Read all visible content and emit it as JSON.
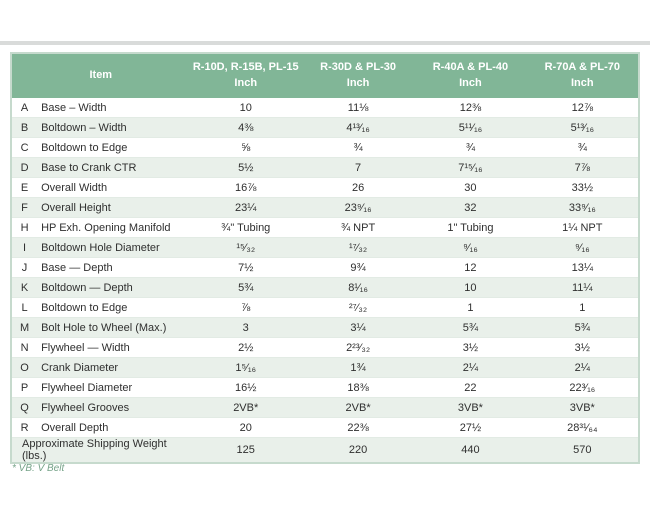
{
  "colors": {
    "header_bg": "#81b697",
    "header_text": "#ffffff",
    "row_stripe": "#e9f0ea",
    "table_border": "#c6dacd",
    "footnote_text": "#76a389",
    "top_rule": "#d9dbda"
  },
  "table": {
    "header": {
      "item_label": "Item",
      "columns": [
        {
          "line1": "R-10D, R-15B, PL-15",
          "line2": "Inch"
        },
        {
          "line1": "R-30D & PL-30",
          "line2": "Inch"
        },
        {
          "line1": "R-40A & PL-40",
          "line2": "Inch"
        },
        {
          "line1": "R-70A & PL-70",
          "line2": "Inch"
        }
      ]
    },
    "rows": [
      {
        "letter": "A",
        "item": "Base – Width",
        "values": [
          "10",
          "11⅛",
          "12⅜",
          "12⅞"
        ]
      },
      {
        "letter": "B",
        "item": "Boltdown – Width",
        "values": [
          "4⅜",
          "4¹³⁄₁₆",
          "5¹¹⁄₁₆",
          "5¹³⁄₁₆"
        ]
      },
      {
        "letter": "C",
        "item": "Boltdown to Edge",
        "values": [
          "⅝",
          "¾",
          "¾",
          "¾"
        ]
      },
      {
        "letter": "D",
        "item": "Base to Crank CTR",
        "values": [
          "5½",
          "7",
          "7¹⁵⁄₁₆",
          "7⅞"
        ]
      },
      {
        "letter": "E",
        "item": "Overall Width",
        "values": [
          "16⅞",
          "26",
          "30",
          "33½"
        ]
      },
      {
        "letter": "F",
        "item": "Overall Height",
        "values": [
          "23¼",
          "23⁹⁄₁₆",
          "32",
          "33⁹⁄₁₆"
        ]
      },
      {
        "letter": "H",
        "item": "HP Exh. Opening Manifold",
        "values": [
          "¾\" Tubing",
          "¾ NPT",
          "1\" Tubing",
          "1¼ NPT"
        ]
      },
      {
        "letter": "I",
        "item": "Boltdown Hole Diameter",
        "values": [
          "¹⁵⁄₃₂",
          "¹⁷⁄₃₂",
          "⁹⁄₁₆",
          "⁹⁄₁₆"
        ]
      },
      {
        "letter": "J",
        "item": "Base — Depth",
        "values": [
          "7½",
          "9¾",
          "12",
          "13¼"
        ]
      },
      {
        "letter": "K",
        "item": "Boltdown — Depth",
        "values": [
          "5¾",
          "8¹⁄₁₆",
          "10",
          "11¼"
        ]
      },
      {
        "letter": "L",
        "item": "Boltdown to Edge",
        "values": [
          "⅞",
          "²⁷⁄₃₂",
          "1",
          "1"
        ]
      },
      {
        "letter": "M",
        "item": "Bolt Hole to Wheel (Max.)",
        "values": [
          "3",
          "3¼",
          "5¾",
          "5¾"
        ]
      },
      {
        "letter": "N",
        "item": "Flywheel — Width",
        "values": [
          "2½",
          "2²³⁄₃₂",
          "3½",
          "3½"
        ]
      },
      {
        "letter": "O",
        "item": "Crank Diameter",
        "values": [
          "1⁵⁄₁₆",
          "1¾",
          "2¼",
          "2¼"
        ]
      },
      {
        "letter": "P",
        "item": "Flywheel Diameter",
        "values": [
          "16½",
          "18⅜",
          "22",
          "22³⁄₁₆"
        ]
      },
      {
        "letter": "Q",
        "item": "Flywheel Grooves",
        "values": [
          "2VB*",
          "2VB*",
          "3VB*",
          "3VB*"
        ]
      },
      {
        "letter": "R",
        "item": "Overall Depth",
        "values": [
          "20",
          "22⅜",
          "27½",
          "28³¹⁄₆₄"
        ]
      }
    ],
    "footer_row": {
      "label": "Approximate Shipping Weight (lbs.)",
      "values": [
        "125",
        "220",
        "440",
        "570"
      ]
    },
    "footnote": "* VB: V Belt"
  }
}
